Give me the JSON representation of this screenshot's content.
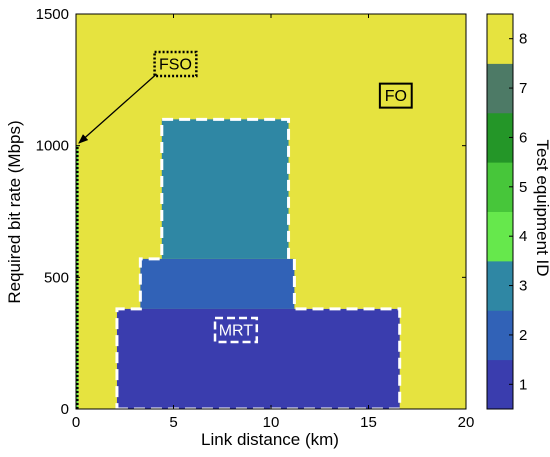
{
  "chart_data": {
    "type": "heatmap",
    "xlabel": "Link distance (km)",
    "ylabel": "Required bit rate (Mbps)",
    "xlim": [
      0,
      20
    ],
    "ylim": [
      0,
      1500
    ],
    "xticks": [
      0,
      5,
      10,
      15,
      20
    ],
    "yticks": [
      0,
      500,
      1000,
      1500
    ],
    "background_id": 8,
    "regions": [
      {
        "id": 2,
        "x": [
          3.3,
          11.2
        ],
        "y": [
          380,
          570
        ]
      },
      {
        "id": 3,
        "x": [
          4.4,
          10.9
        ],
        "y": [
          570,
          1100
        ]
      },
      {
        "id": 1,
        "x": [
          2.1,
          16.6
        ],
        "y": [
          0,
          380
        ]
      },
      {
        "id": 4,
        "x": [
          0.03,
          0.12
        ],
        "y": [
          0,
          1000
        ]
      }
    ],
    "outlines": [
      {
        "style": "dashed-white",
        "points": [
          [
            2.1,
            0
          ],
          [
            16.6,
            0
          ],
          [
            16.6,
            380
          ],
          [
            11.2,
            380
          ],
          [
            11.2,
            570
          ],
          [
            10.9,
            570
          ],
          [
            10.9,
            1100
          ],
          [
            4.4,
            1100
          ],
          [
            4.4,
            570
          ],
          [
            3.3,
            570
          ],
          [
            3.3,
            380
          ],
          [
            2.1,
            380
          ]
        ]
      },
      {
        "style": "dotted-black",
        "points": [
          [
            0.07,
            0
          ],
          [
            0.07,
            1000
          ]
        ]
      }
    ],
    "annotations": [
      {
        "text": "FSO",
        "style": "dotted-box",
        "at": [
          5.1,
          1310
        ],
        "arrow_to": [
          0.15,
          1010
        ]
      },
      {
        "text": "FO",
        "style": "solid-box",
        "at": [
          16.4,
          1190
        ]
      },
      {
        "text": "MRT",
        "style": "dashed-box-white",
        "at": [
          8.2,
          300
        ]
      }
    ],
    "colorbar": {
      "label": "Test equipment ID",
      "range": [
        1,
        8
      ],
      "ticks": [
        1,
        2,
        3,
        4,
        5,
        6,
        7,
        8
      ],
      "colors": {
        "1": "#3a3dae",
        "2": "#3162b7",
        "3": "#2f87a4",
        "4": "#66e84c",
        "5": "#47c63a",
        "6": "#249628",
        "7": "#4d7a66",
        "8": "#e6e33f"
      }
    }
  }
}
